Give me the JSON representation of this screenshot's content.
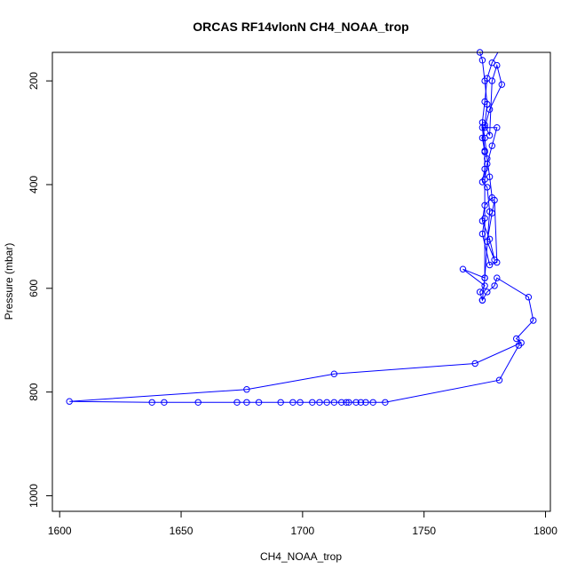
{
  "chart_data": {
    "type": "line",
    "title": "ORCAS RF14vlonN CH4_NOAA_trop",
    "xlabel": "CH4_NOAA_trop",
    "ylabel": "Pressure (mbar)",
    "xlim": [
      1597,
      1802
    ],
    "ylim": [
      1030,
      145
    ],
    "y_reversed": true,
    "xticks": [
      1600,
      1650,
      1700,
      1750,
      1800
    ],
    "yticks": [
      200,
      400,
      600,
      800,
      1000
    ],
    "series_color": "#0000ff",
    "marker": "open-circle",
    "series": [
      {
        "x": [
          1781,
          1778,
          1776,
          1775,
          1774,
          1775,
          1776,
          1777,
          1778,
          1775,
          1774,
          1777,
          1779,
          1776,
          1778,
          1779,
          1780,
          1777,
          1774,
          1775,
          1775,
          1776,
          1778,
          1780,
          1774,
          1775,
          1775,
          1766,
          1775,
          1773,
          1774,
          1776,
          1779,
          1780,
          1793,
          1795,
          1788,
          1790,
          1771,
          1713,
          1677,
          1604,
          1638,
          1643,
          1657,
          1673,
          1677,
          1682,
          1691,
          1696,
          1699,
          1704,
          1707,
          1710,
          1713,
          1716,
          1718,
          1719,
          1722,
          1724,
          1726,
          1729,
          1734,
          1781,
          1789
        ],
        "y": [
          140,
          165,
          195,
          240,
          280,
          310,
          350,
          385,
          425,
          440,
          470,
          505,
          545,
          510,
          455,
          430,
          550,
          555,
          495,
          465,
          390,
          360,
          325,
          290,
          290,
          335,
          580,
          563,
          595,
          607,
          623,
          607,
          595,
          580,
          617,
          662,
          697,
          705,
          745,
          765,
          795,
          818,
          820,
          820,
          820,
          820,
          820,
          820,
          820,
          820,
          820,
          820,
          820,
          820,
          820,
          820,
          820,
          820,
          820,
          820,
          820,
          820,
          820,
          777,
          710
        ]
      },
      {
        "x": [
          1773,
          1774,
          1775,
          1776,
          1775,
          1777,
          1778,
          1780,
          1782,
          1777,
          1775,
          1774,
          1775,
          1775,
          1774,
          1776,
          1777,
          1775,
          1774
        ],
        "y": [
          145,
          160,
          200,
          245,
          285,
          305,
          200,
          170,
          207,
          255,
          290,
          310,
          337,
          370,
          395,
          405,
          452,
          580,
          623
        ]
      }
    ]
  }
}
